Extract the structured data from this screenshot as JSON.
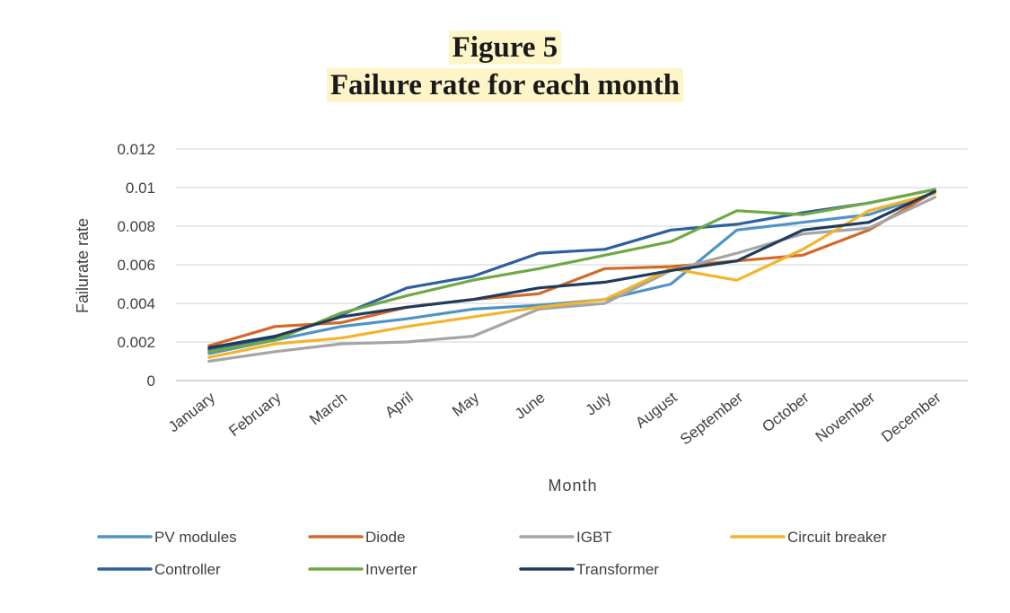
{
  "figure": {
    "label": "Figure 5",
    "title": "Failure rate for each month"
  },
  "chart_data": {
    "type": "line",
    "title": "Failure rate for each month",
    "xlabel": "Month",
    "ylabel": "Failurate rate",
    "categories": [
      "January",
      "February",
      "March",
      "April",
      "May",
      "June",
      "July",
      "August",
      "September",
      "October",
      "November",
      "December"
    ],
    "ylim": [
      0,
      0.012
    ],
    "yticks": [
      "0",
      "0.002",
      "0.004",
      "0.006",
      "0.008",
      "0.01",
      "0.012"
    ],
    "grid": true,
    "legend_position": "bottom",
    "series": [
      {
        "name": "PV modules",
        "color": "#4f93c4",
        "values": [
          0.0014,
          0.0021,
          0.0028,
          0.0032,
          0.0037,
          0.0039,
          0.0042,
          0.005,
          0.0078,
          0.0082,
          0.0086,
          0.0097
        ]
      },
      {
        "name": "Diode",
        "color": "#d2692a",
        "values": [
          0.0018,
          0.0028,
          0.003,
          0.0038,
          0.0042,
          0.0045,
          0.0058,
          0.0059,
          0.0062,
          0.0065,
          0.0078,
          0.0098
        ]
      },
      {
        "name": "IGBT",
        "color": "#a5a5a5",
        "values": [
          0.001,
          0.0015,
          0.0019,
          0.002,
          0.0023,
          0.0037,
          0.004,
          0.0057,
          0.0066,
          0.0076,
          0.0079,
          0.0095
        ]
      },
      {
        "name": "Circuit breaker",
        "color": "#f2b42a",
        "values": [
          0.0012,
          0.0019,
          0.0022,
          0.0028,
          0.0033,
          0.0038,
          0.0042,
          0.0058,
          0.0052,
          0.0068,
          0.0088,
          0.0097
        ]
      },
      {
        "name": "Controller",
        "color": "#2e5f9e",
        "values": [
          0.0016,
          0.0022,
          0.0034,
          0.0048,
          0.0054,
          0.0066,
          0.0068,
          0.0078,
          0.0081,
          0.0087,
          0.0092,
          0.0099
        ]
      },
      {
        "name": "Inverter",
        "color": "#6fa844",
        "values": [
          0.0015,
          0.0021,
          0.0035,
          0.0044,
          0.0052,
          0.0058,
          0.0065,
          0.0072,
          0.0088,
          0.0086,
          0.0092,
          0.0099
        ]
      },
      {
        "name": "Transformer",
        "color": "#1f3b5e",
        "values": [
          0.0017,
          0.0023,
          0.0033,
          0.0038,
          0.0042,
          0.0048,
          0.0051,
          0.0057,
          0.0062,
          0.0078,
          0.0082,
          0.0098
        ]
      }
    ]
  }
}
